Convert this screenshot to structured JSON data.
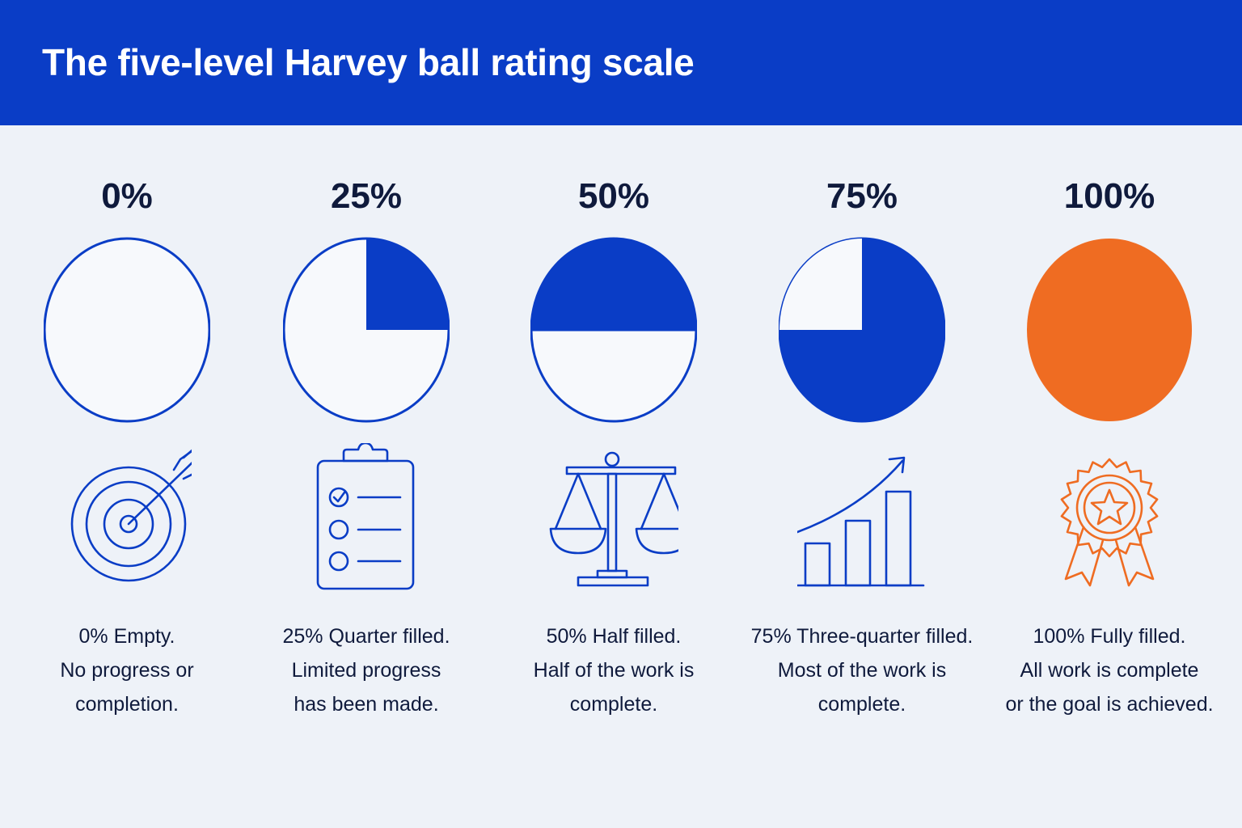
{
  "title": "The five-level Harvey ball rating scale",
  "colors": {
    "header": "#0a3dc6",
    "blue": "#0a3dc6",
    "orange": "#ef6c22",
    "background": "#eef2f8"
  },
  "levels": [
    {
      "percent_label": "0%",
      "fill": 0.0,
      "icon": "target-icon",
      "lines": [
        "0% Empty.",
        "No progress or",
        "completion."
      ]
    },
    {
      "percent_label": "25%",
      "fill": 0.25,
      "icon": "clipboard-icon",
      "lines": [
        "25% Quarter filled.",
        "Limited progress",
        "has been made."
      ]
    },
    {
      "percent_label": "50%",
      "fill": 0.5,
      "icon": "scales-icon",
      "lines": [
        "50% Half filled.",
        "Half of the work is",
        "complete."
      ]
    },
    {
      "percent_label": "75%",
      "fill": 0.75,
      "icon": "growth-chart-icon",
      "lines": [
        "75% Three-quarter filled.",
        "Most of the work is",
        "complete."
      ]
    },
    {
      "percent_label": "100%",
      "fill": 1.0,
      "icon": "award-ribbon-icon",
      "lines": [
        "100% Fully filled.",
        "All work is complete",
        "or the goal is achieved."
      ]
    }
  ]
}
